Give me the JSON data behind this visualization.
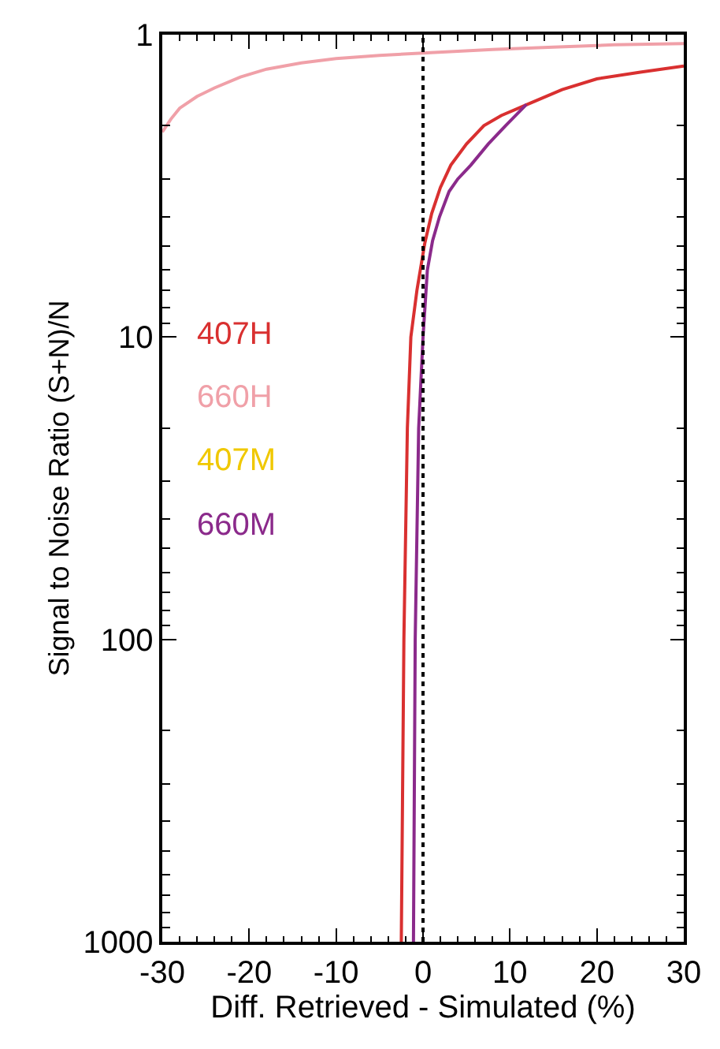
{
  "chart_data": {
    "type": "line",
    "xlabel": "Diff. Retrieved - Simulated (%)",
    "ylabel": "Signal to Noise Ratio (S+N)/N",
    "xlim": [
      -30,
      30
    ],
    "xticks": [
      -30,
      -20,
      -10,
      0,
      10,
      20,
      30
    ],
    "ylim": [
      1000,
      1
    ],
    "yticks": [
      1,
      10,
      100,
      1000
    ],
    "log": "y",
    "legend": "left",
    "marker": "none",
    "line_style": "solid",
    "ref_lines": [
      {
        "axis": "x",
        "value": 0,
        "color": "#000000",
        "line_style": "dotted"
      }
    ],
    "series": [
      {
        "name": "407H",
        "color": "#d93030",
        "x": [
          -2.5,
          -2.2,
          -1.8,
          -1.4,
          -0.7,
          0.2,
          1.0,
          2.0,
          3.2,
          5,
          7,
          9,
          12,
          16,
          20,
          25,
          30
        ],
        "values": [
          1000,
          100,
          20,
          10,
          7,
          4.9,
          3.9,
          3.2,
          2.7,
          2.3,
          2.0,
          1.85,
          1.7,
          1.52,
          1.4,
          1.33,
          1.27
        ]
      },
      {
        "name": "660H",
        "color": "#f0a0a8",
        "x": [
          -30,
          -29,
          -28,
          -26,
          -24,
          -21,
          -18,
          -14,
          -10,
          -5,
          0,
          8,
          15,
          22,
          30
        ],
        "values": [
          2.1,
          1.9,
          1.75,
          1.6,
          1.5,
          1.38,
          1.3,
          1.24,
          1.2,
          1.17,
          1.15,
          1.12,
          1.1,
          1.08,
          1.07
        ]
      },
      {
        "name": "407M",
        "color": "#f0c800"
      },
      {
        "name": "660M",
        "color": "#8b2a8b",
        "x": [
          -1.1,
          -0.9,
          -0.5,
          0,
          0.5,
          1.1,
          1.9,
          3,
          4,
          5.5,
          7.5,
          9.5,
          11.9
        ],
        "values": [
          1000,
          100,
          20,
          10,
          6,
          4.8,
          4,
          3.3,
          3.0,
          2.7,
          2.3,
          2.0,
          1.7
        ]
      }
    ]
  }
}
